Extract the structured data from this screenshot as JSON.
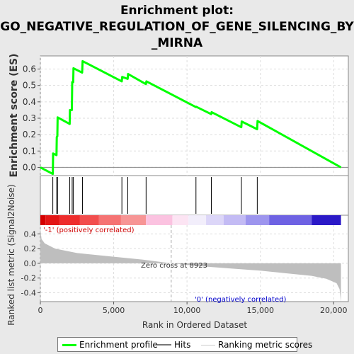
{
  "title_lines": [
    "Enrichment plot:",
    "GO_NEGATIVE_REGULATION_OF_GENE_SILENCING_BY",
    "_MIRNA"
  ],
  "colors": {
    "enrichment": "#00ff00",
    "hits": "#000000",
    "metric_fill": "#bebebe",
    "pos_label": "#cc0000",
    "neg_label": "#0000cc",
    "grid": "#dddddd"
  },
  "legend": {
    "enrichment_label": "Enrichment profile",
    "hits_label": "Hits",
    "metric_label": "Ranking metric scores"
  },
  "annotations": {
    "positive_label": "'-1' (positively correlated)",
    "negative_label": "'0' (negatively correlated)",
    "zero_cross_label": "Zero cross at 8923"
  },
  "chart_data": {
    "type": "line",
    "title": "Enrichment plot: GO_NEGATIVE_REGULATION_OF_GENE_SILENCING_BY_MIRNA",
    "xlabel": "Rank in Ordered Dataset",
    "xlim": [
      0,
      21000
    ],
    "x_ticks": [
      0,
      5000,
      10000,
      15000,
      20000
    ],
    "x_tick_labels": [
      "0",
      "5,000",
      "10,000",
      "15,000",
      "20,000"
    ],
    "enrichment_score": {
      "ylabel": "Enrichment score (ES)",
      "ylim": [
        -0.05,
        0.68
      ],
      "y_ticks": [
        0.0,
        0.1,
        0.2,
        0.3,
        0.4,
        0.5,
        0.6
      ],
      "y_tick_labels": [
        "0.0",
        "0.1",
        "0.2",
        "0.3",
        "0.4",
        "0.5",
        "0.6"
      ],
      "points": [
        [
          0,
          0.0
        ],
        [
          850,
          -0.04
        ],
        [
          870,
          0.085
        ],
        [
          1100,
          0.075
        ],
        [
          1120,
          0.185
        ],
        [
          1160,
          0.19
        ],
        [
          1180,
          0.305
        ],
        [
          2000,
          0.265
        ],
        [
          2020,
          0.35
        ],
        [
          2150,
          0.35
        ],
        [
          2170,
          0.52
        ],
        [
          2240,
          0.52
        ],
        [
          2260,
          0.605
        ],
        [
          2850,
          0.578
        ],
        [
          2880,
          0.648
        ],
        [
          5550,
          0.525
        ],
        [
          5580,
          0.552
        ],
        [
          5950,
          0.54
        ],
        [
          5980,
          0.57
        ],
        [
          7200,
          0.508
        ],
        [
          7230,
          0.525
        ],
        [
          10600,
          0.368
        ],
        [
          10630,
          0.37
        ],
        [
          11650,
          0.325
        ],
        [
          11680,
          0.337
        ],
        [
          13700,
          0.245
        ],
        [
          13730,
          0.28
        ],
        [
          14780,
          0.233
        ],
        [
          14810,
          0.283
        ],
        [
          20500,
          0.0
        ]
      ]
    },
    "hits": [
      850,
      1120,
      1170,
      2000,
      2170,
      2250,
      2870,
      5560,
      5960,
      7210,
      10610,
      11660,
      13710,
      14790
    ],
    "ranked_metric": {
      "ylabel": "Ranked list metric (Signal2Noise)",
      "ylim": [
        -0.52,
        0.48
      ],
      "y_ticks": [
        -0.4,
        -0.2,
        0.0,
        0.2,
        0.4
      ],
      "y_tick_labels": [
        "-0.4",
        "-0.2",
        "0.0",
        "0.2",
        "0.4"
      ],
      "zero_cross": 8923,
      "profile": [
        [
          0,
          0.46
        ],
        [
          80,
          0.33
        ],
        [
          300,
          0.27
        ],
        [
          1000,
          0.2
        ],
        [
          2500,
          0.14
        ],
        [
          5000,
          0.09
        ],
        [
          7000,
          0.05
        ],
        [
          8923,
          0.0
        ],
        [
          11000,
          -0.04
        ],
        [
          13000,
          -0.07
        ],
        [
          15000,
          -0.1
        ],
        [
          17000,
          -0.14
        ],
        [
          18500,
          -0.17
        ],
        [
          19500,
          -0.21
        ],
        [
          20200,
          -0.27
        ],
        [
          20400,
          -0.35
        ],
        [
          20500,
          -0.52
        ]
      ]
    },
    "color_bar": {
      "segments": [
        [
          "#d50000",
          0,
          350
        ],
        [
          "#e31616",
          350,
          1300
        ],
        [
          "#ee2d2d",
          1300,
          2700
        ],
        [
          "#f24e4e",
          2700,
          4000
        ],
        [
          "#f57373",
          4000,
          5500
        ],
        [
          "#f79595",
          5500,
          7200
        ],
        [
          "#fbc2e0",
          7200,
          9000
        ],
        [
          "#fce4f3",
          9000,
          10100
        ],
        [
          "#f2eefb",
          10100,
          11300
        ],
        [
          "#dcd6f8",
          11300,
          12500
        ],
        [
          "#c3bbf4",
          12500,
          14000
        ],
        [
          "#9d95ee",
          14000,
          15600
        ],
        [
          "#6e62e3",
          15600,
          18500
        ],
        [
          "#2b19c7",
          18500,
          20500
        ]
      ]
    }
  }
}
